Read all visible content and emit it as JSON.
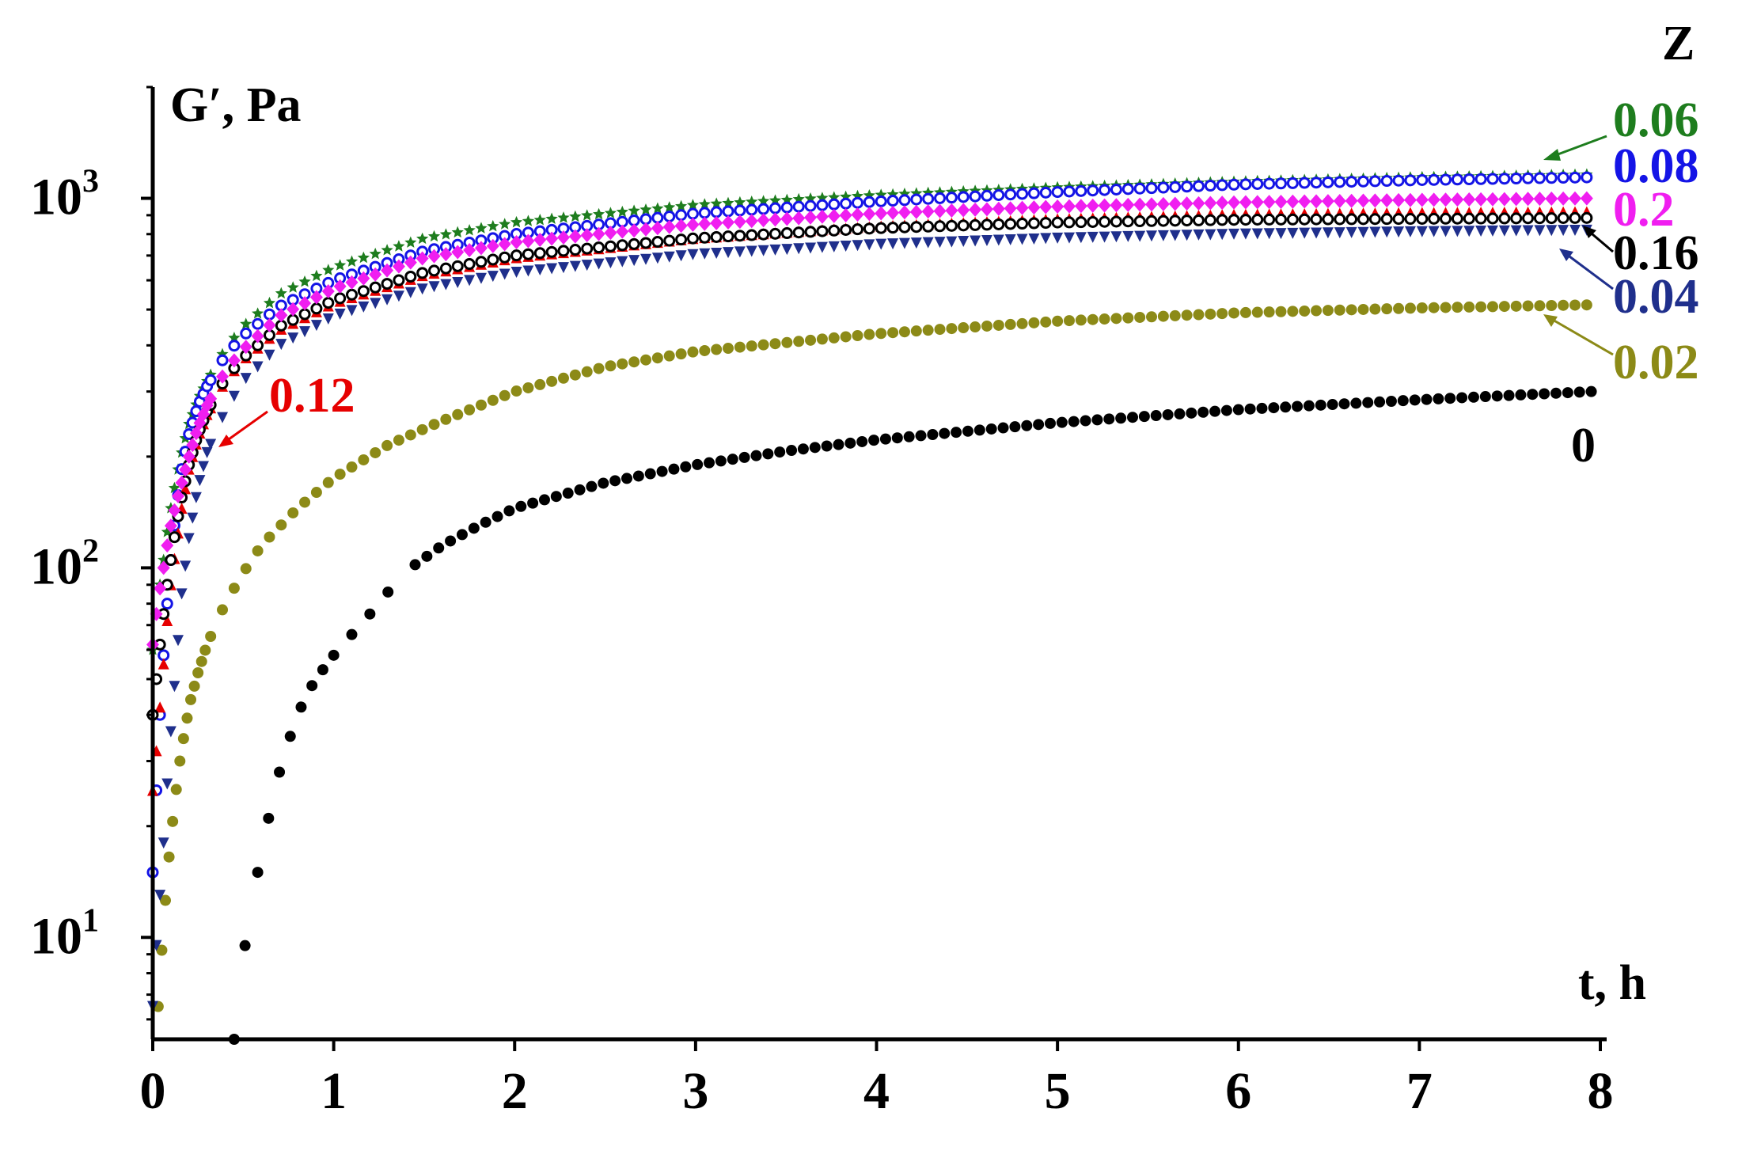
{
  "chart_data": {
    "type": "scatter",
    "title": "",
    "xlabel": "t, h",
    "ylabel": "G′, Pa",
    "legend_title": "Z",
    "xlim": [
      0,
      8
    ],
    "ylim": [
      5.3,
      2000
    ],
    "y_scale": "log",
    "x_ticks": [
      "0",
      "1",
      "2",
      "3",
      "4",
      "5",
      "6",
      "7",
      "8"
    ],
    "y_ticks": [
      {
        "value": 10,
        "base": "10",
        "exp": "1"
      },
      {
        "value": 100,
        "base": "10",
        "exp": "2"
      },
      {
        "value": 1000,
        "base": "10",
        "exp": "3"
      }
    ],
    "series": [
      {
        "name": "0",
        "color": "#000000",
        "marker": "circle",
        "x": [
          0.45,
          0.51,
          0.58,
          0.64,
          0.7,
          0.76,
          0.82,
          0.88,
          0.94,
          1.0,
          1.1,
          1.2,
          1.3,
          1.45,
          1.6,
          1.8,
          2.0,
          2.5,
          3.0,
          3.5,
          4.0,
          5.0,
          6.0,
          7.0,
          7.95
        ],
        "values": [
          5.3,
          9.5,
          15,
          21,
          28,
          35,
          42,
          48,
          53,
          58,
          66,
          75,
          86,
          102,
          115,
          130,
          145,
          170,
          190,
          207,
          222,
          247,
          268,
          285,
          300
        ]
      },
      {
        "name": "0.02",
        "color": "#8c8a17",
        "marker": "circle",
        "x": [
          0.03,
          0.06,
          0.09,
          0.12,
          0.15,
          0.18,
          0.21,
          0.25,
          0.3,
          0.4,
          0.5,
          0.6,
          0.8,
          1.0,
          1.3,
          1.6,
          2.0,
          2.5,
          3.0,
          4.0,
          5.0,
          6.0,
          7.0,
          7.95
        ],
        "values": [
          6.5,
          11,
          16.5,
          23,
          30,
          37,
          44,
          52,
          62,
          80,
          97,
          115,
          145,
          175,
          215,
          250,
          300,
          350,
          385,
          430,
          465,
          490,
          505,
          515
        ]
      },
      {
        "name": "0.04",
        "color": "#1f2f8c",
        "marker": "triangle-down",
        "x": [
          0.0,
          0.02,
          0.04,
          0.06,
          0.08,
          0.1,
          0.13,
          0.16,
          0.2,
          0.25,
          0.3,
          0.4,
          0.5,
          0.7,
          1.0,
          1.5,
          2.0,
          3.0,
          4.0,
          5.0,
          6.0,
          7.0,
          7.95
        ],
        "values": [
          6.5,
          9.5,
          13,
          18,
          26,
          36,
          55,
          85,
          120,
          165,
          205,
          265,
          320,
          400,
          480,
          570,
          630,
          705,
          750,
          780,
          800,
          812,
          820
        ]
      },
      {
        "name": "0.06",
        "color": "#1e7d1e",
        "marker": "star",
        "x": [
          0.0,
          0.02,
          0.04,
          0.06,
          0.08,
          0.1,
          0.13,
          0.16,
          0.2,
          0.25,
          0.3,
          0.4,
          0.5,
          0.7,
          1.0,
          1.5,
          2.0,
          3.0,
          4.0,
          5.0,
          6.0,
          7.0,
          7.95
        ],
        "values": [
          60,
          75,
          90,
          105,
          125,
          145,
          175,
          205,
          245,
          285,
          320,
          390,
          450,
          550,
          650,
          780,
          860,
          960,
          1020,
          1070,
          1110,
          1140,
          1160
        ]
      },
      {
        "name": "0.08",
        "color": "#1414e6",
        "marker": "circle-open",
        "x": [
          0.0,
          0.02,
          0.04,
          0.06,
          0.08,
          0.1,
          0.13,
          0.16,
          0.2,
          0.25,
          0.3,
          0.4,
          0.5,
          0.7,
          1.0,
          1.5,
          2.0,
          3.0,
          4.0,
          5.0,
          6.0,
          7.0,
          7.95
        ],
        "values": [
          15,
          25,
          40,
          58,
          80,
          105,
          145,
          185,
          230,
          275,
          310,
          375,
          425,
          510,
          600,
          720,
          800,
          910,
          980,
          1040,
          1090,
          1120,
          1140
        ]
      },
      {
        "name": "0.12",
        "color": "#e60000",
        "marker": "triangle-up",
        "x": [
          0.0,
          0.02,
          0.04,
          0.06,
          0.08,
          0.1,
          0.13,
          0.16,
          0.2,
          0.25,
          0.3,
          0.4,
          0.5,
          0.7,
          1.0,
          1.5,
          2.0,
          3.0,
          4.0,
          5.0,
          6.0,
          7.0,
          7.95
        ],
        "values": [
          25,
          32,
          42,
          55,
          72,
          90,
          115,
          145,
          185,
          225,
          260,
          320,
          365,
          440,
          520,
          620,
          690,
          780,
          840,
          880,
          905,
          915,
          920
        ]
      },
      {
        "name": "0.16",
        "color": "#000000",
        "marker": "circle-open",
        "x": [
          0.0,
          0.02,
          0.04,
          0.06,
          0.08,
          0.1,
          0.13,
          0.16,
          0.2,
          0.25,
          0.3,
          0.4,
          0.5,
          0.7,
          1.0,
          1.5,
          2.0,
          3.0,
          4.0,
          5.0,
          6.0,
          7.0,
          7.95
        ],
        "values": [
          40,
          50,
          62,
          75,
          90,
          105,
          130,
          155,
          190,
          230,
          265,
          325,
          370,
          450,
          530,
          630,
          700,
          780,
          830,
          860,
          875,
          880,
          885
        ]
      },
      {
        "name": "0.2",
        "color": "#f01ef0",
        "marker": "diamond",
        "x": [
          0.0,
          0.02,
          0.04,
          0.06,
          0.08,
          0.1,
          0.13,
          0.16,
          0.2,
          0.25,
          0.3,
          0.4,
          0.5,
          0.7,
          1.0,
          1.5,
          2.0,
          3.0,
          4.0,
          5.0,
          6.0,
          7.0,
          7.95
        ],
        "values": [
          62,
          75,
          88,
          100,
          115,
          130,
          150,
          170,
          200,
          240,
          275,
          340,
          390,
          480,
          570,
          690,
          760,
          850,
          910,
          950,
          975,
          990,
          1000
        ]
      }
    ],
    "annotations": [
      "Z",
      "0.06",
      "0.08",
      "0.2",
      "0.16",
      "0.04",
      "0.02",
      "0",
      "0.12"
    ]
  }
}
